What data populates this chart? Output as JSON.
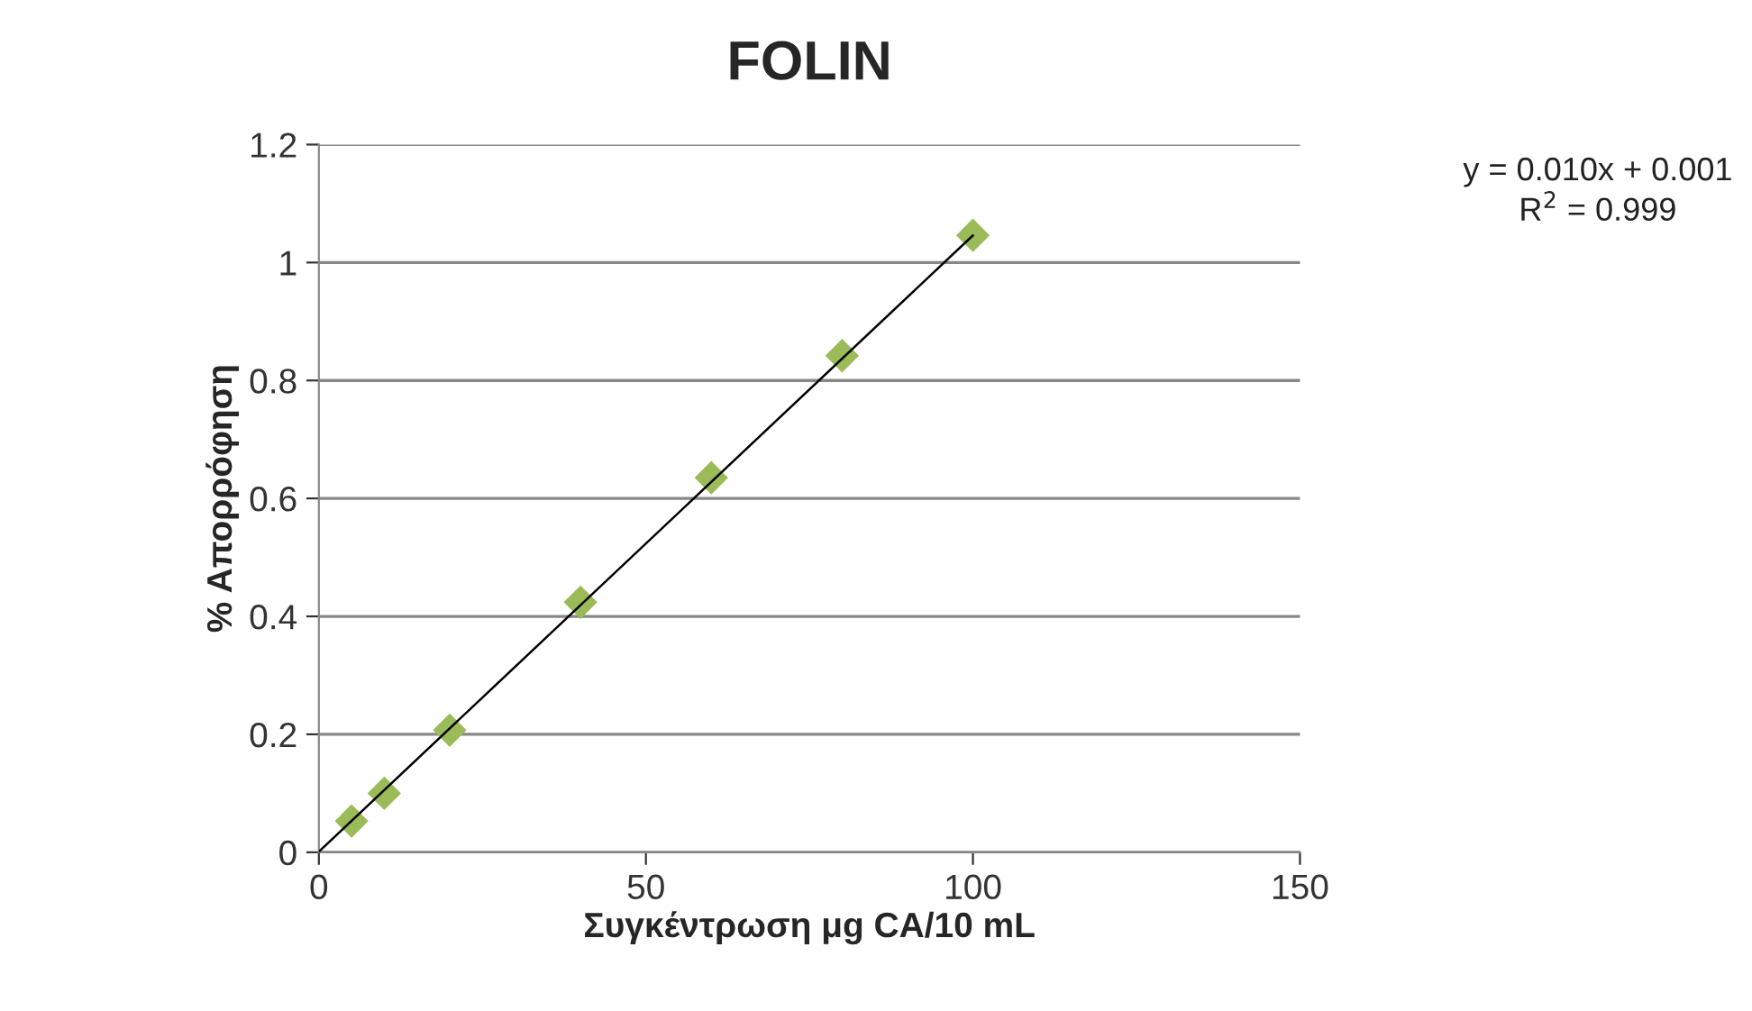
{
  "chart_data": {
    "type": "scatter",
    "title": "FOLIN",
    "xlabel": "Συγκέντρωση μg CA/10 mL",
    "ylabel": "% Απορρόφηση",
    "annotations": [
      "y = 0.010x + 0.001",
      "R$^{2}$ = 0.999"
    ],
    "series": [
      {
        "color": "#9bbb59",
        "marker": "diamond",
        "x": [
          5,
          10,
          20,
          40,
          60,
          80,
          100
        ],
        "values": [
          0.053,
          0.1,
          0.207,
          0.424,
          0.635,
          0.842,
          1.046
        ]
      },
      {
        "type": "line",
        "color": "#000000",
        "marker": "none",
        "line_style": "solid",
        "x": [
          0,
          100
        ],
        "values": [
          0.001,
          1.046
        ]
      }
    ],
    "xlim": [
      0,
      150
    ],
    "xticks": [
      0,
      50,
      100,
      150
    ],
    "ylim": [
      0,
      1.2
    ],
    "yticks": [
      0,
      0.2,
      0.4,
      0.6,
      0.8,
      1,
      1.2
    ],
    "grid": "y",
    "legend": false
  }
}
